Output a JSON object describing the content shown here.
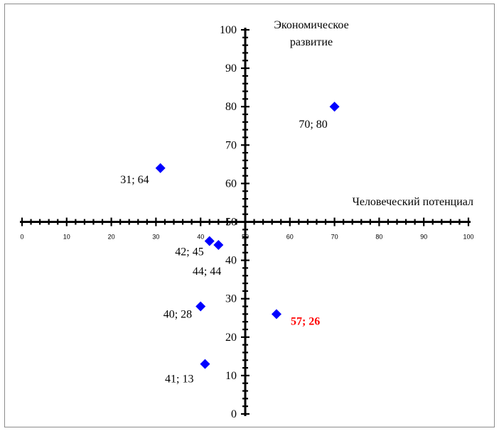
{
  "chart_data": {
    "type": "scatter",
    "xlabel": "Человеческий потенциал",
    "ylabel": [
      "Экономическое",
      "развитие"
    ],
    "xlim": [
      0,
      100
    ],
    "ylim": [
      0,
      100
    ],
    "x_ticks": [
      "0",
      "10",
      "20",
      "30",
      "40",
      "50",
      "60",
      "70",
      "80",
      "90",
      "100"
    ],
    "y_ticks": [
      "0",
      "10",
      "20",
      "30",
      "40",
      "50",
      "60",
      "70",
      "80",
      "90",
      "100"
    ],
    "cross_at": [
      50,
      50
    ],
    "grid": false,
    "marker": "diamond",
    "marker_color": "#0000ff",
    "highlight_color": "#ff0000",
    "points": [
      {
        "x": 70,
        "y": 80,
        "label": "70; 80",
        "highlight": false
      },
      {
        "x": 31,
        "y": 64,
        "label": "31; 64",
        "highlight": false
      },
      {
        "x": 42,
        "y": 45,
        "label": "42; 45",
        "highlight": false
      },
      {
        "x": 44,
        "y": 44,
        "label": "44; 44",
        "highlight": false
      },
      {
        "x": 40,
        "y": 28,
        "label": "40; 28",
        "highlight": false
      },
      {
        "x": 57,
        "y": 26,
        "label": "57; 26",
        "highlight": true
      },
      {
        "x": 41,
        "y": 13,
        "label": "41; 13",
        "highlight": false
      }
    ]
  }
}
